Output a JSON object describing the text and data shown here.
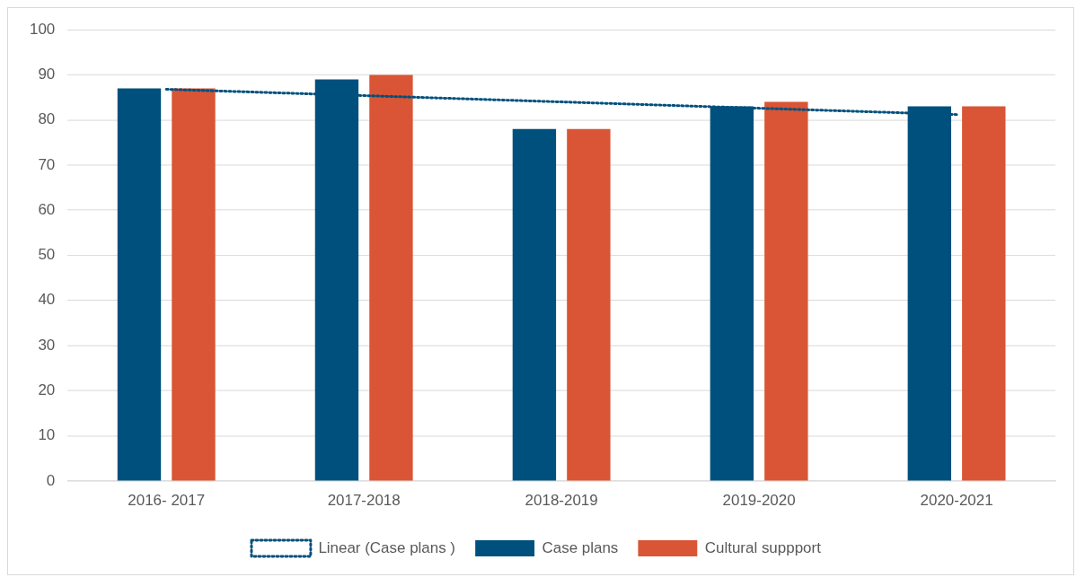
{
  "chart_data": {
    "type": "bar",
    "categories": [
      "2016- 2017",
      "2017-2018",
      "2018-2019",
      "2019-2020",
      "2020-2021"
    ],
    "series": [
      {
        "name": "Case plans",
        "color": "#00507d",
        "values": [
          87,
          89,
          78,
          83,
          83
        ]
      },
      {
        "name": "Cultural suppport",
        "color": "#d95535",
        "values": [
          87,
          90,
          78,
          84,
          83
        ]
      },
      {
        "name": "Linear (Case plans )",
        "type": "line",
        "color": "#00507d",
        "values": [
          86.8,
          85.4,
          84,
          82.6,
          81.2
        ],
        "line_style": "dotted",
        "marker": "none"
      }
    ],
    "ylim": [
      0,
      100
    ],
    "yticks": [
      0,
      10,
      20,
      30,
      40,
      50,
      60,
      70,
      80,
      90,
      100
    ],
    "grid": "y",
    "legend": "bottom"
  }
}
